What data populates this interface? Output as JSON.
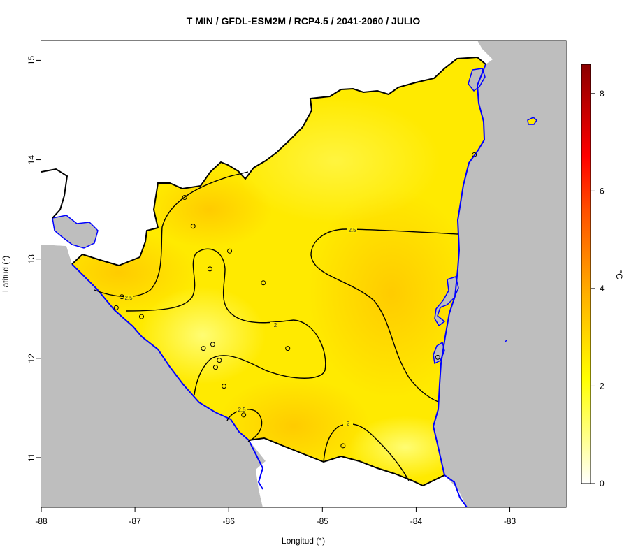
{
  "title": "T MIN / GFDL-ESM2M / RCP4.5 / 2041-2060 / JULIO",
  "xlabel": "Longitud (°)",
  "ylabel": "Latitud (°)",
  "x_ticks": [
    "-88",
    "-87",
    "-86",
    "-85",
    "-84",
    "-83"
  ],
  "y_ticks": [
    "15",
    "14",
    "13",
    "12",
    "11"
  ],
  "colorbar": {
    "unit": "°C",
    "ticks": [
      "0",
      "2",
      "4",
      "6",
      "8"
    ],
    "range": [
      0,
      8.6
    ],
    "colors": [
      "#ffffff",
      "#ffff00",
      "#ffa500",
      "#ff0000",
      "#8b0000"
    ]
  },
  "contour_labels": [
    "2.5",
    "2.5",
    "2",
    "2",
    "2.5"
  ],
  "colors": {
    "land_fill": "#ffea00",
    "sea_gray": "#bebebe",
    "coast": "#0000ff",
    "border": "#000000"
  },
  "map_data": {
    "type": "contour-map",
    "lon_range": [
      -88,
      -82.4
    ],
    "lat_range": [
      10.5,
      15.2
    ],
    "stations": [
      [
        -86.47,
        13.62
      ],
      [
        -86.38,
        13.33
      ],
      [
        -85.99,
        13.08
      ],
      [
        -86.2,
        12.9
      ],
      [
        -85.63,
        12.76
      ],
      [
        -87.14,
        12.62
      ],
      [
        -87.2,
        12.51
      ],
      [
        -86.93,
        12.42
      ],
      [
        -86.17,
        12.14
      ],
      [
        -86.27,
        12.1
      ],
      [
        -85.37,
        12.1
      ],
      [
        -86.1,
        11.98
      ],
      [
        -86.14,
        11.91
      ],
      [
        -86.05,
        11.72
      ],
      [
        -85.84,
        11.43
      ],
      [
        -84.78,
        11.12
      ],
      [
        -83.77,
        12.01
      ],
      [
        -83.38,
        14.05
      ]
    ]
  }
}
